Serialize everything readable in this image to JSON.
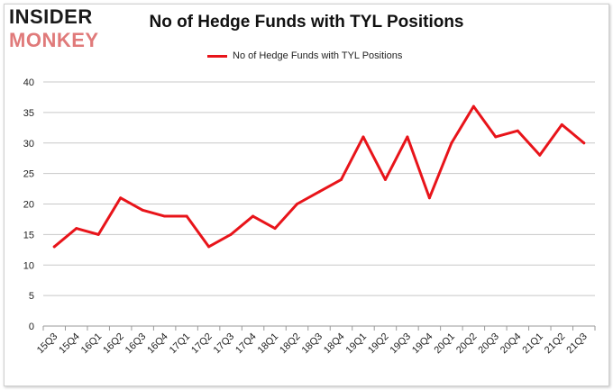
{
  "brand": {
    "line1": "INSIDER",
    "line2": "MONKEY"
  },
  "chart_data": {
    "type": "line",
    "title": "No of Hedge Funds with TYL Positions",
    "xlabel": "",
    "ylabel": "",
    "categories": [
      "15Q3",
      "15Q4",
      "16Q1",
      "16Q2",
      "16Q3",
      "16Q4",
      "17Q1",
      "17Q2",
      "17Q3",
      "17Q4",
      "18Q1",
      "18Q2",
      "18Q3",
      "18Q4",
      "19Q1",
      "19Q2",
      "19Q3",
      "19Q4",
      "20Q1",
      "20Q2",
      "20Q3",
      "20Q4",
      "21Q1",
      "21Q2",
      "21Q3"
    ],
    "series": [
      {
        "name": "No of Hedge Funds with TYL Positions",
        "values": [
          13,
          16,
          15,
          21,
          19,
          18,
          18,
          13,
          15,
          18,
          16,
          20,
          22,
          24,
          31,
          24,
          31,
          21,
          30,
          36,
          31,
          32,
          28,
          33,
          30
        ],
        "color": "#e8141a"
      }
    ],
    "ylim": [
      0,
      40
    ],
    "yticks": [
      0,
      5,
      10,
      15,
      20,
      25,
      30,
      35,
      40
    ],
    "grid": "horizontal",
    "legend_position": "top"
  }
}
